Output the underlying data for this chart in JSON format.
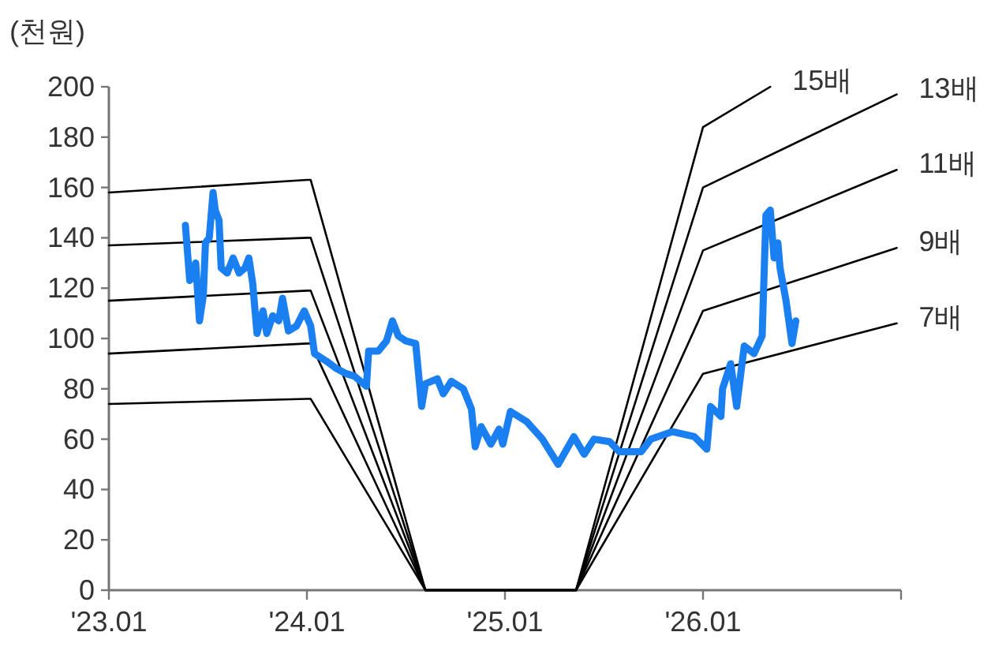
{
  "chart_data": {
    "type": "line",
    "ylabel": "(천원)",
    "xlim": [
      "2023-01",
      "2027-01"
    ],
    "xticks": [
      {
        "value": "2023-01",
        "label": "'23.01"
      },
      {
        "value": "2024-01",
        "label": "'24.01"
      },
      {
        "value": "2025-01",
        "label": "'25.01"
      },
      {
        "value": "2026-01",
        "label": "'26.01"
      },
      {
        "value": "2027-01",
        "label": null
      }
    ],
    "ylim": [
      0,
      200
    ],
    "yticks": [
      0,
      20,
      40,
      60,
      80,
      100,
      120,
      140,
      160,
      180,
      200
    ],
    "grid": false,
    "legend": false,
    "marker": "none",
    "line_style": "solid",
    "series": [
      {
        "name": "15배",
        "color": "#000000",
        "x": [
          "2023-01-01",
          "2024-01-01",
          "2024-01-08",
          "2024-08-07",
          "2025-05-12",
          "2026-01-01",
          "2026-05-05"
        ],
        "values": [
          158,
          163,
          163,
          0,
          0,
          184,
          200
        ]
      },
      {
        "name": "13배",
        "color": "#000000",
        "x": [
          "2023-01-01",
          "2024-01-01",
          "2024-01-08",
          "2024-08-07",
          "2025-05-12",
          "2026-01-01",
          "2026-12-24"
        ],
        "values": [
          137,
          140,
          140,
          0,
          0,
          160,
          197
        ]
      },
      {
        "name": "11배",
        "color": "#000000",
        "x": [
          "2023-01-01",
          "2024-01-01",
          "2024-01-08",
          "2024-08-07",
          "2025-05-12",
          "2026-01-01",
          "2026-12-24"
        ],
        "values": [
          115,
          119,
          119,
          0,
          0,
          135,
          167
        ]
      },
      {
        "name": "9배",
        "color": "#000000",
        "x": [
          "2023-01-01",
          "2024-01-01",
          "2024-01-08",
          "2024-08-07",
          "2025-05-12",
          "2026-01-01",
          "2026-12-24"
        ],
        "values": [
          94,
          98,
          98,
          0,
          0,
          111,
          136
        ]
      },
      {
        "name": "7배",
        "color": "#000000",
        "x": [
          "2023-01-01",
          "2024-01-01",
          "2024-01-08",
          "2024-08-07",
          "2025-05-12",
          "2026-01-01",
          "2026-12-24"
        ],
        "values": [
          74,
          76,
          76,
          0,
          0,
          86,
          106
        ]
      },
      {
        "color": "#1a7ff0",
        "x": [
          "2023-05-22",
          "2023-05-30",
          "2023-06-10",
          "2023-06-17",
          "2023-06-24",
          "2023-06-28",
          "2023-07-05",
          "2023-07-12",
          "2023-07-16",
          "2023-07-23",
          "2023-07-27",
          "2023-08-07",
          "2023-08-18",
          "2023-08-29",
          "2023-09-09",
          "2023-09-16",
          "2023-09-23",
          "2023-10-01",
          "2023-10-12",
          "2023-10-19",
          "2023-10-30",
          "2023-11-10",
          "2023-11-17",
          "2023-11-28",
          "2023-12-13",
          "2023-12-27",
          "2024-01-08",
          "2024-01-15",
          "2024-02-06",
          "2024-02-25",
          "2024-03-14",
          "2024-03-29",
          "2024-04-20",
          "2024-04-24",
          "2024-05-12",
          "2024-05-27",
          "2024-06-07",
          "2024-06-18",
          "2024-07-02",
          "2024-07-20",
          "2024-07-31",
          "2024-08-07",
          "2024-08-29",
          "2024-09-09",
          "2024-09-24",
          "2024-10-16",
          "2024-10-31",
          "2024-11-07",
          "2024-11-18",
          "2024-12-06",
          "2024-12-21",
          "2024-12-28",
          "2025-01-11",
          "2025-02-10",
          "2025-03-11",
          "2025-04-09",
          "2025-05-08",
          "2025-05-27",
          "2025-06-14",
          "2025-07-13",
          "2025-07-31",
          "2025-09-09",
          "2025-09-27",
          "2025-11-06",
          "2025-12-16",
          "2026-01-08",
          "2026-01-15",
          "2026-02-03",
          "2026-02-06",
          "2026-02-21",
          "2026-03-04",
          "2026-03-18",
          "2026-04-05",
          "2026-04-20",
          "2026-04-27",
          "2026-05-05",
          "2026-05-12",
          "2026-05-19",
          "2026-05-23",
          "2026-06-03",
          "2026-06-14",
          "2026-06-21"
        ],
        "values": [
          145,
          123,
          130,
          107,
          117,
          138,
          140,
          158,
          151,
          147,
          128,
          126,
          132,
          126,
          128,
          132,
          122,
          102,
          111,
          102,
          109,
          107,
          116,
          103,
          105,
          111,
          105,
          94,
          91,
          88,
          86,
          85,
          81,
          95,
          95,
          99,
          107,
          101,
          99,
          98,
          73,
          82,
          84,
          78,
          83,
          80,
          72,
          57,
          65,
          58,
          64,
          58,
          71,
          67,
          60,
          50,
          61,
          54,
          60,
          59,
          55,
          55,
          60,
          63,
          61,
          56,
          73,
          69,
          80,
          90,
          73,
          97,
          94,
          101,
          149,
          151,
          132,
          138,
          128,
          115,
          98,
          107
        ]
      }
    ]
  }
}
